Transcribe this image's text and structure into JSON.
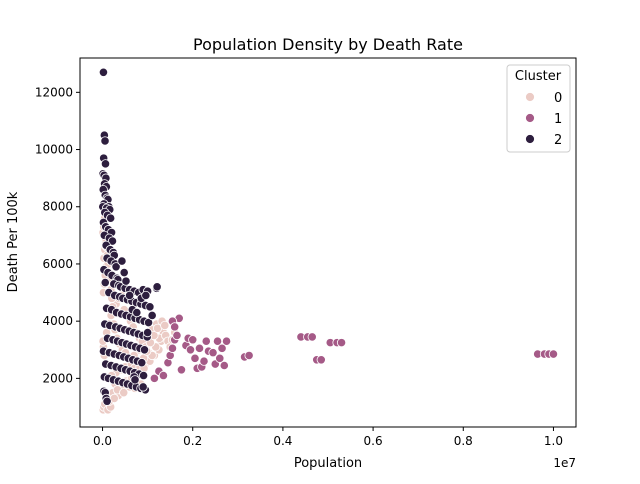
{
  "chart_data": {
    "type": "scatter",
    "title": "Population Density by Death Rate",
    "xlabel": "Population",
    "ylabel": "Death Per 100k",
    "x_offset_text": "1e7",
    "xlim": [
      -500000,
      10500000
    ],
    "ylim": [
      300,
      13200
    ],
    "x_ticks": [
      0,
      2000000,
      4000000,
      6000000,
      8000000,
      10000000
    ],
    "x_tick_labels": [
      "0.0",
      "0.2",
      "0.4",
      "0.6",
      "0.8",
      "1.0"
    ],
    "y_ticks": [
      2000,
      4000,
      6000,
      8000,
      10000,
      12000
    ],
    "y_tick_labels": [
      "2000",
      "4000",
      "6000",
      "8000",
      "10000",
      "12000"
    ],
    "grid": false,
    "legend": {
      "title": "Cluster",
      "placement": "top-right",
      "entries": [
        {
          "label": "0",
          "color": "#ebcbc5"
        },
        {
          "label": "1",
          "color": "#a55a87"
        },
        {
          "label": "2",
          "color": "#2d1e3e"
        }
      ]
    },
    "series": [
      {
        "name": "0",
        "color": "#ebcbc5",
        "points": [
          [
            15000,
            900
          ],
          [
            30000,
            1000
          ],
          [
            50000,
            1100
          ],
          [
            80000,
            1300
          ],
          [
            120000,
            900
          ],
          [
            180000,
            1000
          ],
          [
            230000,
            1500
          ],
          [
            280000,
            1800
          ],
          [
            350000,
            1400
          ],
          [
            400000,
            1700
          ],
          [
            450000,
            1600
          ],
          [
            520000,
            1900
          ],
          [
            600000,
            1700
          ],
          [
            700000,
            2100
          ],
          [
            780000,
            2300
          ],
          [
            850000,
            1800
          ],
          [
            950000,
            2500
          ],
          [
            1050000,
            2600
          ],
          [
            1150000,
            2800
          ],
          [
            1250000,
            3000
          ],
          [
            1300000,
            3300
          ],
          [
            1350000,
            3600
          ],
          [
            1200000,
            3900
          ],
          [
            1100000,
            3700
          ],
          [
            1000000,
            3500
          ],
          [
            900000,
            3200
          ],
          [
            800000,
            3000
          ],
          [
            700000,
            2800
          ],
          [
            600000,
            2600
          ],
          [
            500000,
            2400
          ],
          [
            400000,
            2300
          ],
          [
            300000,
            2200
          ],
          [
            200000,
            2100
          ],
          [
            100000,
            2000
          ],
          [
            60000,
            2500
          ],
          [
            40000,
            2800
          ],
          [
            20000,
            3100
          ],
          [
            10000,
            3300
          ],
          [
            90000,
            3600
          ],
          [
            140000,
            3900
          ],
          [
            190000,
            4200
          ],
          [
            240000,
            4400
          ],
          [
            300000,
            4600
          ],
          [
            360000,
            4800
          ],
          [
            420000,
            4900
          ],
          [
            480000,
            4400
          ],
          [
            550000,
            4200
          ],
          [
            620000,
            4000
          ],
          [
            680000,
            3800
          ],
          [
            740000,
            3600
          ],
          [
            820000,
            3400
          ],
          [
            880000,
            3300
          ],
          [
            960000,
            3100
          ],
          [
            1020000,
            2900
          ],
          [
            1100000,
            2800
          ],
          [
            1180000,
            3100
          ],
          [
            1260000,
            3400
          ],
          [
            20000,
            5000
          ],
          [
            40000,
            5300
          ],
          [
            60000,
            5600
          ],
          [
            80000,
            5900
          ],
          [
            30000,
            6200
          ],
          [
            50000,
            6500
          ],
          [
            70000,
            6800
          ],
          [
            10000,
            7100
          ],
          [
            25000,
            7300
          ],
          [
            45000,
            7600
          ],
          [
            65000,
            6900
          ],
          [
            85000,
            6600
          ],
          [
            105000,
            6300
          ],
          [
            125000,
            6000
          ],
          [
            145000,
            5700
          ],
          [
            165000,
            5400
          ],
          [
            185000,
            5100
          ],
          [
            205000,
            4800
          ],
          [
            225000,
            4500
          ],
          [
            250000,
            3900
          ],
          [
            275000,
            3700
          ],
          [
            320000,
            3400
          ],
          [
            380000,
            3200
          ],
          [
            440000,
            3000
          ],
          [
            510000,
            2900
          ],
          [
            570000,
            2700
          ],
          [
            640000,
            2500
          ],
          [
            710000,
            2350
          ],
          [
            760000,
            2200
          ],
          [
            830000,
            2400
          ],
          [
            910000,
            2700
          ],
          [
            980000,
            2950
          ],
          [
            1060000,
            3250
          ],
          [
            1140000,
            3500
          ],
          [
            1220000,
            3750
          ],
          [
            1320000,
            4000
          ],
          [
            150000,
            1200
          ],
          [
            260000,
            1300
          ],
          [
            330000,
            1600
          ],
          [
            470000,
            1500
          ],
          [
            560000,
            1850
          ],
          [
            650000,
            2000
          ],
          [
            720000,
            1650
          ],
          [
            840000,
            2150
          ],
          [
            920000,
            2350
          ],
          [
            1400000,
            3500
          ],
          [
            1450000,
            3300
          ],
          [
            1500000,
            3100
          ],
          [
            1550000,
            3350
          ],
          [
            1600000,
            3600
          ],
          [
            1380000,
            3850
          ]
        ]
      },
      {
        "name": "1",
        "color": "#a55a87",
        "points": [
          [
            1150000,
            2000
          ],
          [
            1250000,
            2250
          ],
          [
            1350000,
            2100
          ],
          [
            1450000,
            2550
          ],
          [
            1500000,
            2800
          ],
          [
            1550000,
            3050
          ],
          [
            1600000,
            3350
          ],
          [
            1650000,
            3500
          ],
          [
            1700000,
            4100
          ],
          [
            1550000,
            4000
          ],
          [
            1600000,
            3800
          ],
          [
            1750000,
            2300
          ],
          [
            1850000,
            3150
          ],
          [
            1900000,
            3400
          ],
          [
            1950000,
            3000
          ],
          [
            2000000,
            3350
          ],
          [
            2050000,
            2700
          ],
          [
            2100000,
            2350
          ],
          [
            2150000,
            3050
          ],
          [
            2200000,
            2400
          ],
          [
            2250000,
            2600
          ],
          [
            2300000,
            3300
          ],
          [
            2350000,
            2950
          ],
          [
            2450000,
            2900
          ],
          [
            2500000,
            2500
          ],
          [
            2550000,
            3300
          ],
          [
            2600000,
            2700
          ],
          [
            2650000,
            3050
          ],
          [
            2700000,
            2450
          ],
          [
            2750000,
            3300
          ],
          [
            3150000,
            2750
          ],
          [
            3250000,
            2800
          ],
          [
            4400000,
            3450
          ],
          [
            4550000,
            3450
          ],
          [
            4650000,
            3450
          ],
          [
            4750000,
            2650
          ],
          [
            4850000,
            2650
          ],
          [
            5050000,
            3250
          ],
          [
            5200000,
            3250
          ],
          [
            5300000,
            3250
          ],
          [
            9650000,
            2850
          ],
          [
            9800000,
            2850
          ],
          [
            9900000,
            2850
          ],
          [
            10000000,
            2850
          ]
        ]
      },
      {
        "name": "2",
        "color": "#2d1e3e",
        "points": [
          [
            20000,
            12700
          ],
          [
            40000,
            10500
          ],
          [
            55000,
            10300
          ],
          [
            25000,
            9700
          ],
          [
            65000,
            9500
          ],
          [
            10000,
            9150
          ],
          [
            35000,
            9100
          ],
          [
            75000,
            9000
          ],
          [
            45000,
            8800
          ],
          [
            85000,
            8700
          ],
          [
            15000,
            8600
          ],
          [
            60000,
            8400
          ],
          [
            100000,
            8300
          ],
          [
            120000,
            8250
          ],
          [
            30000,
            8100
          ],
          [
            140000,
            8000
          ],
          [
            5000,
            8000
          ],
          [
            90000,
            7950
          ],
          [
            160000,
            7900
          ],
          [
            50000,
            7800
          ],
          [
            110000,
            7700
          ],
          [
            180000,
            7600
          ],
          [
            20000,
            7450
          ],
          [
            70000,
            7300
          ],
          [
            130000,
            7200
          ],
          [
            200000,
            7100
          ],
          [
            40000,
            7000
          ],
          [
            150000,
            6900
          ],
          [
            220000,
            6800
          ],
          [
            80000,
            6650
          ],
          [
            170000,
            6500
          ],
          [
            240000,
            6400
          ],
          [
            260000,
            6300
          ],
          [
            100000,
            6200
          ],
          [
            190000,
            6100
          ],
          [
            280000,
            6000
          ],
          [
            300000,
            5900
          ],
          [
            30000,
            5800
          ],
          [
            120000,
            5700
          ],
          [
            210000,
            5600
          ],
          [
            320000,
            5500
          ],
          [
            340000,
            5450
          ],
          [
            60000,
            5350
          ],
          [
            250000,
            5300
          ],
          [
            360000,
            5250
          ],
          [
            400000,
            5200
          ],
          [
            500000,
            5150
          ],
          [
            600000,
            5100
          ],
          [
            700000,
            5050
          ],
          [
            800000,
            5000
          ],
          [
            900000,
            5100
          ],
          [
            1000000,
            5050
          ],
          [
            1200000,
            5150
          ],
          [
            1210000,
            5200
          ],
          [
            140000,
            5000
          ],
          [
            270000,
            4900
          ],
          [
            380000,
            4850
          ],
          [
            450000,
            4800
          ],
          [
            550000,
            4750
          ],
          [
            650000,
            4700
          ],
          [
            750000,
            4650
          ],
          [
            850000,
            4600
          ],
          [
            950000,
            4550
          ],
          [
            1050000,
            4500
          ],
          [
            90000,
            4450
          ],
          [
            200000,
            4400
          ],
          [
            310000,
            4300
          ],
          [
            420000,
            4250
          ],
          [
            520000,
            4200
          ],
          [
            620000,
            4150
          ],
          [
            720000,
            4100
          ],
          [
            820000,
            4050
          ],
          [
            920000,
            4000
          ],
          [
            1020000,
            3950
          ],
          [
            50000,
            3900
          ],
          [
            160000,
            3850
          ],
          [
            290000,
            3800
          ],
          [
            390000,
            3750
          ],
          [
            490000,
            3700
          ],
          [
            590000,
            3650
          ],
          [
            690000,
            3600
          ],
          [
            790000,
            3550
          ],
          [
            890000,
            3500
          ],
          [
            990000,
            3450
          ],
          [
            110000,
            3400
          ],
          [
            230000,
            3350
          ],
          [
            330000,
            3300
          ],
          [
            430000,
            3250
          ],
          [
            530000,
            3200
          ],
          [
            630000,
            3150
          ],
          [
            730000,
            3100
          ],
          [
            830000,
            3050
          ],
          [
            930000,
            3000
          ],
          [
            20000,
            2950
          ],
          [
            150000,
            2900
          ],
          [
            260000,
            2850
          ],
          [
            370000,
            2800
          ],
          [
            470000,
            2750
          ],
          [
            570000,
            2700
          ],
          [
            670000,
            2650
          ],
          [
            770000,
            2600
          ],
          [
            870000,
            2550
          ],
          [
            70000,
            2500
          ],
          [
            190000,
            2450
          ],
          [
            300000,
            2400
          ],
          [
            410000,
            2350
          ],
          [
            510000,
            2300
          ],
          [
            610000,
            2250
          ],
          [
            710000,
            2200
          ],
          [
            810000,
            2150
          ],
          [
            910000,
            2100
          ],
          [
            40000,
            2050
          ],
          [
            130000,
            2000
          ],
          [
            240000,
            1950
          ],
          [
            350000,
            1900
          ],
          [
            450000,
            1850
          ],
          [
            550000,
            1800
          ],
          [
            650000,
            1750
          ],
          [
            750000,
            1700
          ],
          [
            850000,
            1650
          ],
          [
            950000,
            1600
          ],
          [
            30000,
            1550
          ],
          [
            60000,
            1500
          ],
          [
            80000,
            1300
          ],
          [
            100000,
            1200
          ],
          [
            700000,
            2050
          ],
          [
            720000,
            1950
          ],
          [
            900000,
            1700
          ],
          [
            1000000,
            3600
          ],
          [
            1100000,
            4200
          ],
          [
            430000,
            6100
          ],
          [
            480000,
            5700
          ],
          [
            520000,
            5400
          ],
          [
            600000,
            4900
          ],
          [
            660000,
            4400
          ],
          [
            760000,
            4300
          ],
          [
            860000,
            4800
          ],
          [
            960000,
            4900
          ]
        ]
      }
    ]
  }
}
